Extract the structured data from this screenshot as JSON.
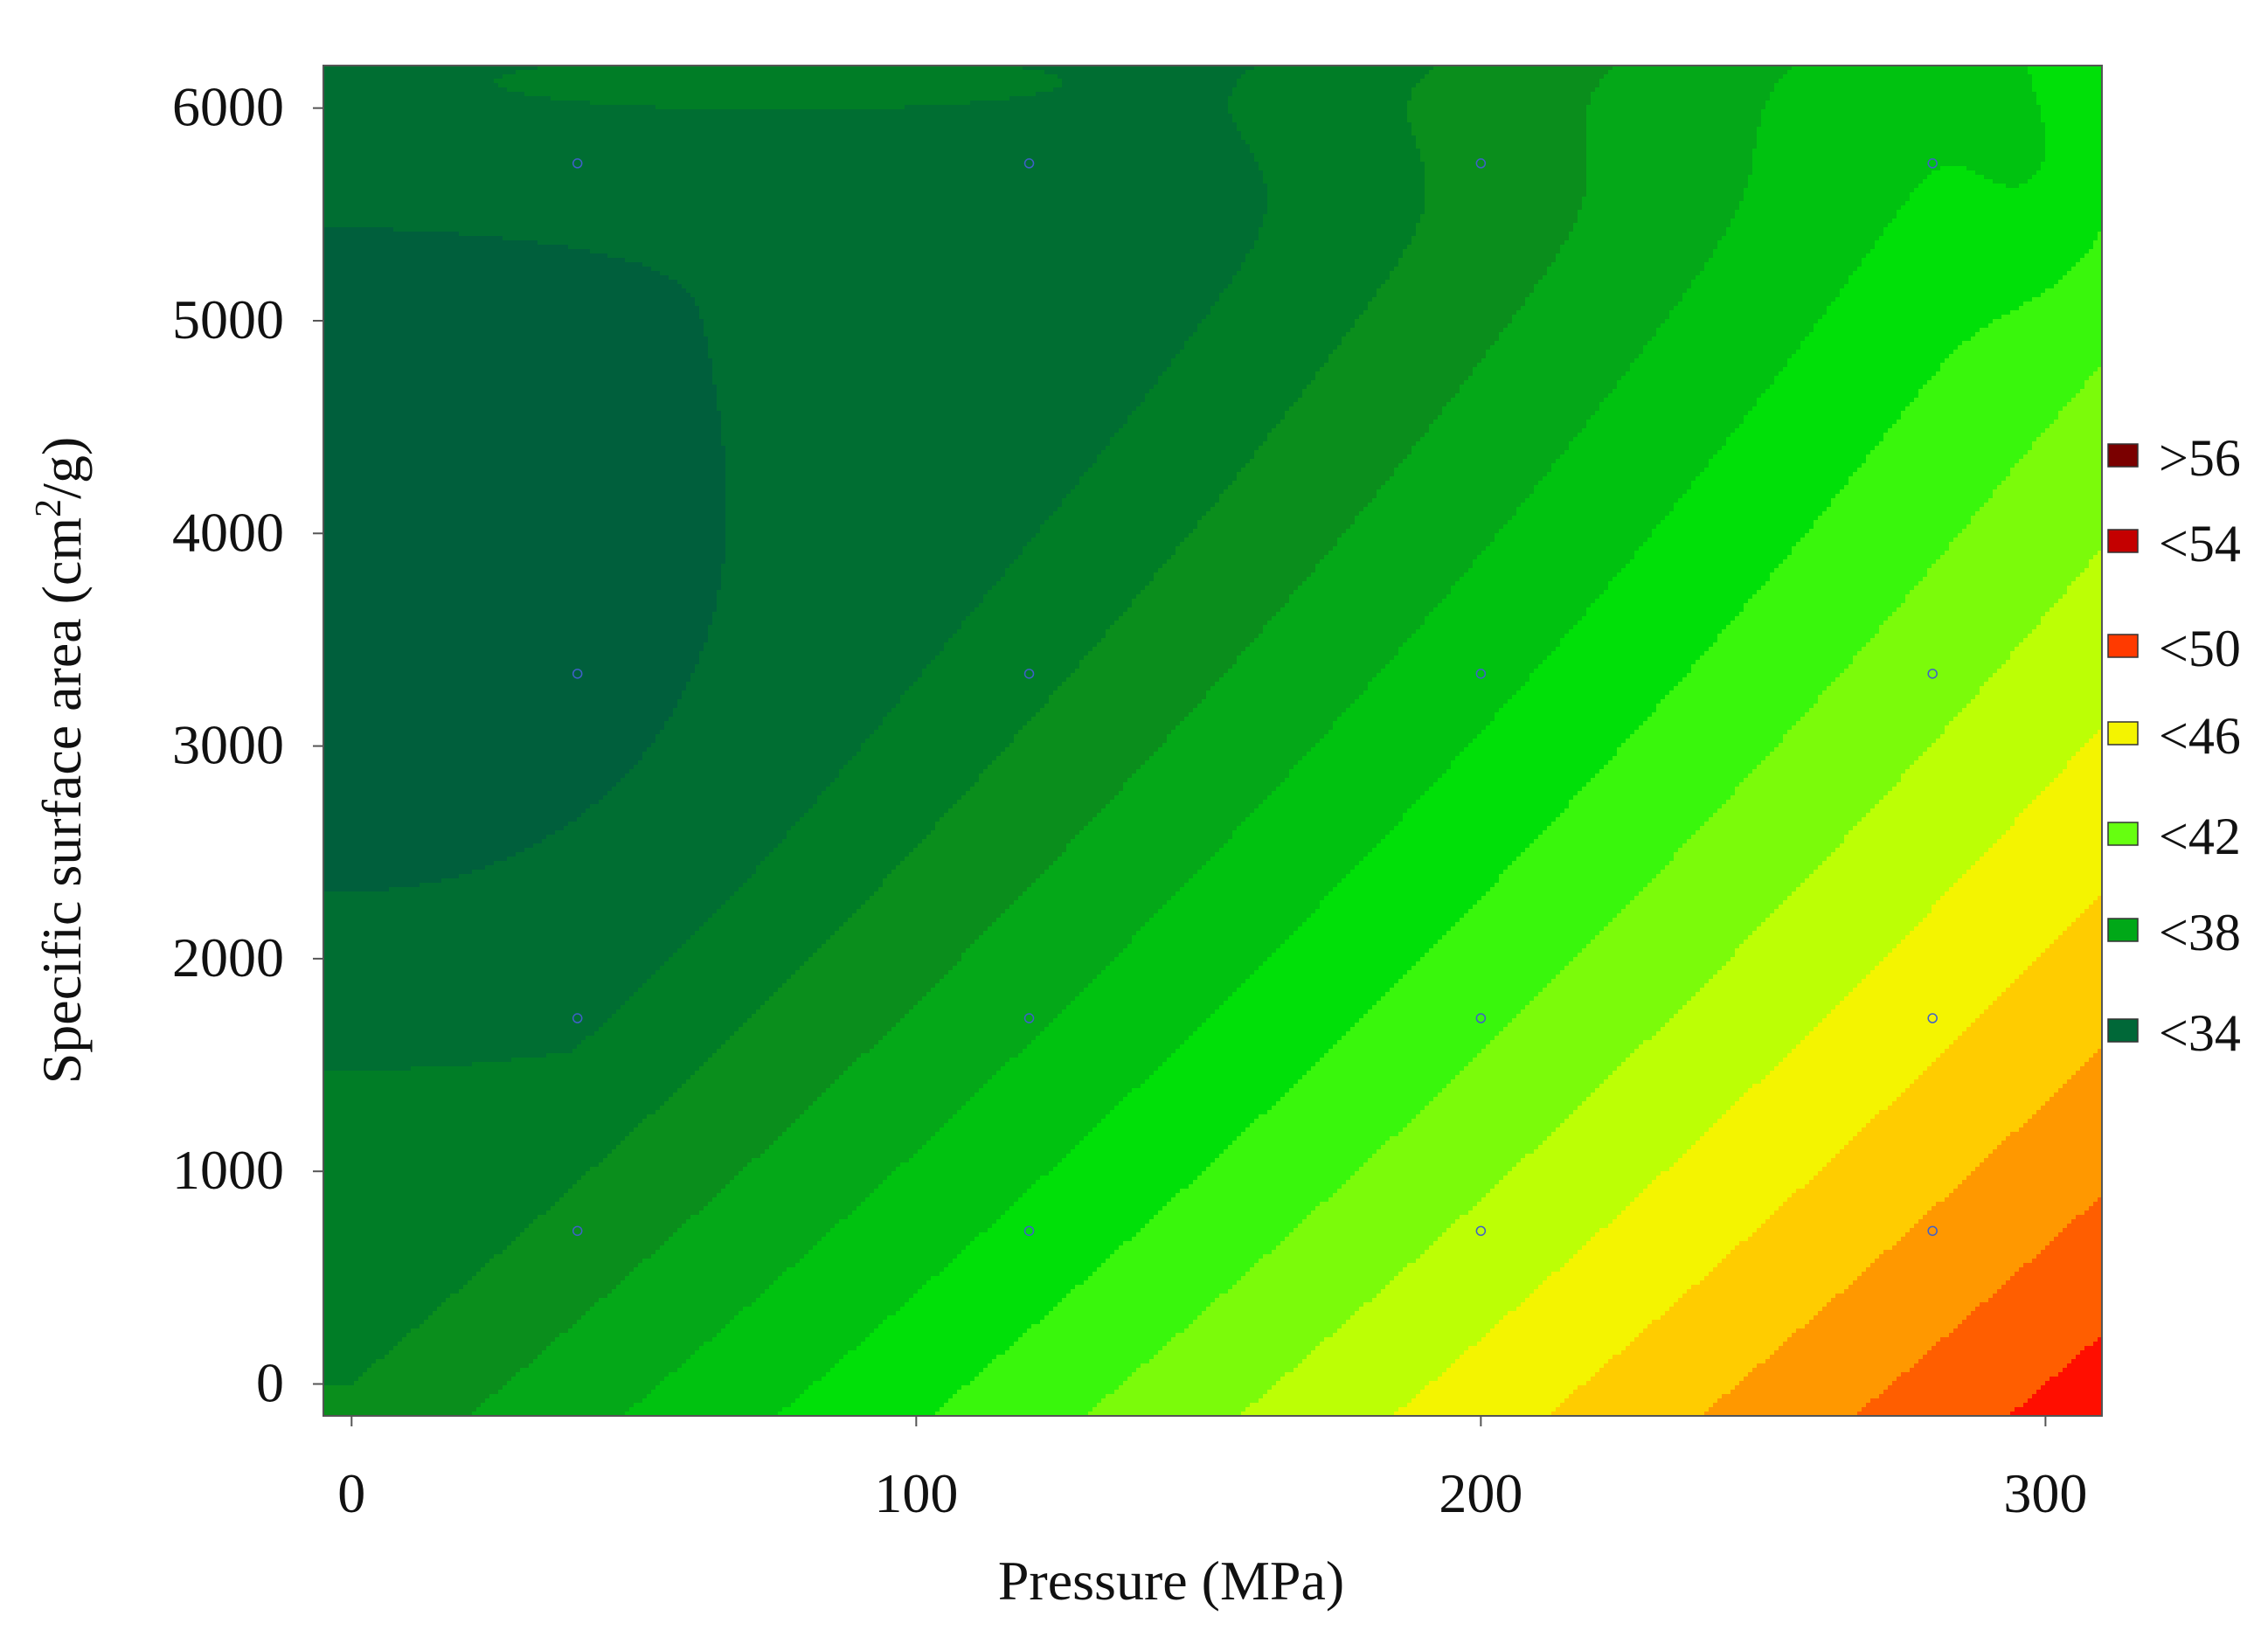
{
  "chart_data": {
    "type": "heatmap",
    "subtype": "filled-contour",
    "title": "",
    "xlabel": "Pressure (MPa)",
    "ylabel": "Specific surface area (cm²/g)",
    "ylabel_parts": {
      "before": "Specific surface area (cm",
      "sup": "2",
      "after": "/g)"
    },
    "xlim": [
      -5,
      310
    ],
    "ylim": [
      -150,
      6200
    ],
    "x_ticks": [
      0,
      100,
      200,
      300
    ],
    "x_tick_labels": [
      "0",
      "100",
      "200",
      "300"
    ],
    "y_ticks": [
      0,
      1000,
      2000,
      3000,
      4000,
      5000,
      6000
    ],
    "y_tick_labels": [
      "0",
      "1000",
      "2000",
      "3000",
      "4000",
      "5000",
      "6000"
    ],
    "grid": false,
    "legend": {
      "placement": "right",
      "entries": [
        {
          "label": ">56",
          "color": "#7a0000"
        },
        {
          "label": "<54",
          "color": "#c40000"
        },
        {
          "label": "<50",
          "color": "#ff3a00"
        },
        {
          "label": "<46",
          "color": "#f4f400"
        },
        {
          "label": "<42",
          "color": "#66ff10"
        },
        {
          "label": "<38",
          "color": "#00a818"
        },
        {
          "label": "<34",
          "color": "#006838"
        }
      ]
    },
    "contour_levels": [
      32,
      34,
      36,
      38,
      40,
      42,
      44,
      46,
      48,
      50,
      52,
      54,
      56,
      58
    ],
    "contour_colors": [
      "#005f3c",
      "#006e32",
      "#007d26",
      "#0a8e1c",
      "#04a818",
      "#00c210",
      "#00e008",
      "#39f70c",
      "#7bfb0a",
      "#bcff05",
      "#f4f400",
      "#ffcc00",
      "#ff9800",
      "#ff5e00",
      "#ff0e00",
      "#cc0000",
      "#8c0000"
    ],
    "sample_points": {
      "x": [
        40,
        120,
        200,
        280
      ],
      "y": [
        720,
        1720,
        3340,
        5740
      ],
      "color": "#4060c8"
    }
  }
}
